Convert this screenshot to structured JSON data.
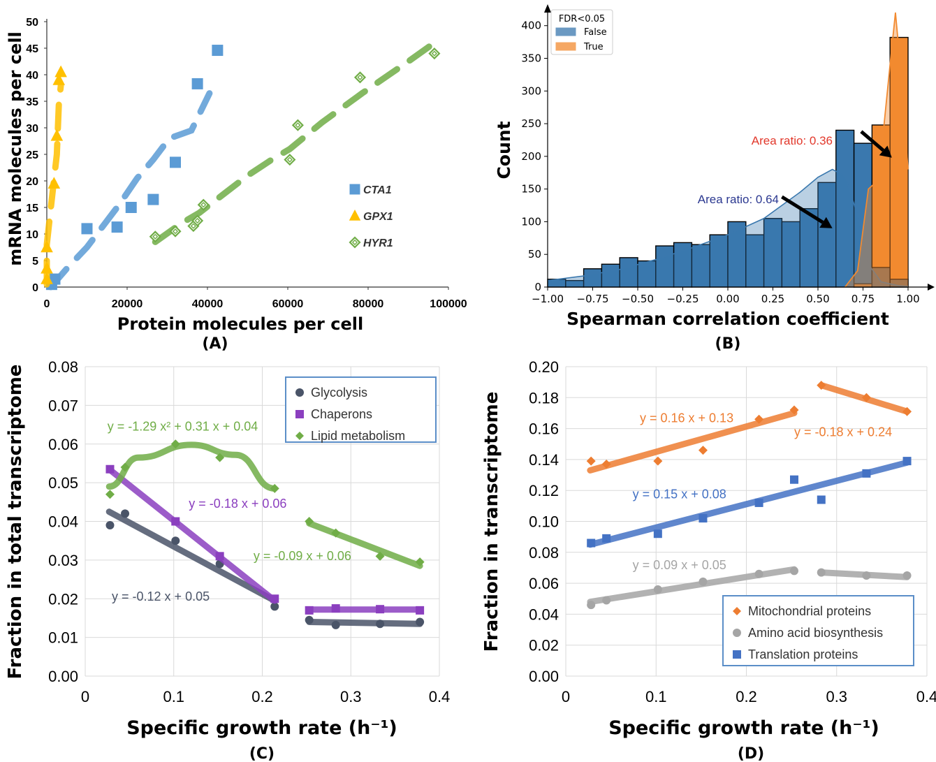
{
  "chart_data": [
    {
      "id": "A",
      "panel_label": "(A)",
      "type": "scatter",
      "xlabel": "Protein molecules per cell",
      "ylabel": "mRNA molecules per cell",
      "xlim": [
        0,
        100000
      ],
      "ylim": [
        0,
        50
      ],
      "xticks": [
        0,
        20000,
        40000,
        60000,
        80000,
        100000
      ],
      "yticks": [
        0,
        5,
        10,
        15,
        20,
        25,
        30,
        35,
        40,
        45,
        50
      ],
      "legend_position": "middle-right",
      "series": [
        {
          "name": "CTA1",
          "color": "#5b9bd5",
          "marker": "square",
          "points": [
            [
              1200,
              0.5
            ],
            [
              2000,
              1.5
            ],
            [
              10000,
              11
            ],
            [
              17500,
              11.3
            ],
            [
              21000,
              15
            ],
            [
              26500,
              16.5
            ],
            [
              32000,
              23.5
            ],
            [
              37500,
              38.3
            ],
            [
              42500,
              44.6
            ]
          ],
          "trend": [
            [
              1000,
              0
            ],
            [
              5000,
              3.5
            ],
            [
              10000,
              7.5
            ],
            [
              14500,
              12
            ],
            [
              18000,
              15.5
            ],
            [
              22500,
              20.5
            ],
            [
              26500,
              24
            ],
            [
              30500,
              28
            ],
            [
              36000,
              29.5
            ],
            [
              40500,
              36.5
            ]
          ]
        },
        {
          "name": "GPX1",
          "color": "#ffc000",
          "marker": "triangle",
          "points": [
            [
              0,
              1.5
            ],
            [
              0,
              3.5
            ],
            [
              0,
              7.5
            ],
            [
              1800,
              19.5
            ],
            [
              2500,
              28.5
            ],
            [
              3000,
              39
            ],
            [
              3500,
              40.5
            ]
          ],
          "trend": [
            [
              0,
              0.5
            ],
            [
              0,
              8
            ],
            [
              800,
              13.5
            ],
            [
              2200,
              23
            ],
            [
              2500,
              25
            ],
            [
              3000,
              34.5
            ],
            [
              3500,
              38
            ]
          ]
        },
        {
          "name": "HYR1",
          "color": "#70ad47",
          "marker": "diamond",
          "points": [
            [
              27000,
              9.5
            ],
            [
              32000,
              10.5
            ],
            [
              36500,
              11.5
            ],
            [
              37500,
              12.5
            ],
            [
              39000,
              15.5
            ],
            [
              60500,
              24
            ],
            [
              62500,
              30.5
            ],
            [
              78000,
              39.5
            ],
            [
              96500,
              44
            ]
          ],
          "trend": [
            [
              27000,
              8.5
            ],
            [
              33500,
              12
            ],
            [
              38000,
              14
            ],
            [
              44000,
              17.5
            ],
            [
              50000,
              21
            ],
            [
              56000,
              24
            ],
            [
              60500,
              26
            ],
            [
              68500,
              31
            ],
            [
              78500,
              36.5
            ],
            [
              90000,
              42.5
            ],
            [
              96500,
              46
            ]
          ]
        }
      ]
    },
    {
      "id": "B",
      "panel_label": "(B)",
      "type": "histogram",
      "xlabel": "Spearman correlation coefficient",
      "ylabel": "Count",
      "xlim": [
        -1.0,
        1.0
      ],
      "ylim": [
        0,
        420
      ],
      "xticks": [
        -1.0,
        -0.75,
        -0.5,
        -0.25,
        0.0,
        0.25,
        0.5,
        0.75,
        1.0
      ],
      "xtick_labels": [
        "−1.00",
        "−0.75",
        "−0.50",
        "−0.25",
        "0.00",
        "0.25",
        "0.50",
        "0.75",
        "1.00"
      ],
      "yticks": [
        0,
        50,
        100,
        150,
        200,
        250,
        300,
        350,
        400
      ],
      "legend_title": "FDR<0.05",
      "legend_position": "top-left",
      "bin_edges": [
        -1.0,
        -0.9,
        -0.8,
        -0.7,
        -0.6,
        -0.5,
        -0.4,
        -0.3,
        -0.2,
        -0.1,
        0.0,
        0.1,
        0.2,
        0.3,
        0.4,
        0.5,
        0.6,
        0.7,
        0.8,
        0.9,
        1.0
      ],
      "series": [
        {
          "name": "False",
          "color": "#3a78ae",
          "counts": [
            12,
            10,
            28,
            35,
            45,
            40,
            63,
            68,
            65,
            80,
            100,
            80,
            105,
            100,
            120,
            160,
            240,
            220,
            30,
            12
          ]
        },
        {
          "name": "True",
          "color": "#f28a30",
          "counts": [
            0,
            0,
            0,
            0,
            0,
            0,
            0,
            0,
            0,
            0,
            0,
            0,
            0,
            0,
            0,
            0,
            0,
            5,
            248,
            382
          ]
        }
      ],
      "kde_false": [
        [
          -1.0,
          10
        ],
        [
          -0.8,
          17
        ],
        [
          -0.6,
          27
        ],
        [
          -0.4,
          42
        ],
        [
          -0.2,
          60
        ],
        [
          0.0,
          80
        ],
        [
          0.2,
          105
        ],
        [
          0.4,
          145
        ],
        [
          0.5,
          168
        ],
        [
          0.58,
          180
        ],
        [
          0.65,
          170
        ],
        [
          0.72,
          110
        ],
        [
          0.78,
          35
        ],
        [
          0.85,
          8
        ],
        [
          0.95,
          2
        ],
        [
          1.0,
          1
        ]
      ],
      "kde_true": [
        [
          0.65,
          0
        ],
        [
          0.72,
          25
        ],
        [
          0.78,
          150
        ],
        [
          0.82,
          160
        ],
        [
          0.86,
          230
        ],
        [
          0.9,
          340
        ],
        [
          0.93,
          420
        ],
        [
          0.96,
          330
        ],
        [
          0.98,
          250
        ],
        [
          1.0,
          180
        ]
      ],
      "annotations": [
        {
          "text": "Area ratio: 0.36",
          "color": "#e2382b",
          "from": [
            0.74,
            238
          ],
          "to": [
            0.91,
            198
          ]
        },
        {
          "text": "Area ratio: 0.64",
          "color": "#2b3890",
          "from": [
            0.3,
            138
          ],
          "to": [
            0.58,
            90
          ]
        }
      ]
    },
    {
      "id": "C",
      "panel_label": "(C)",
      "type": "scatter",
      "xlabel": "Specific growth rate (h⁻¹)",
      "ylabel": "Fraction in total transcriptome",
      "xlim": [
        0,
        0.4
      ],
      "ylim": [
        0,
        0.08
      ],
      "xticks": [
        0,
        0.1,
        0.2,
        0.3,
        0.4
      ],
      "xtick_labels": [
        "0",
        "0.1",
        "0.2",
        "0.3",
        "0.4"
      ],
      "yticks": [
        0,
        0.01,
        0.02,
        0.03,
        0.04,
        0.05,
        0.06,
        0.07,
        0.08
      ],
      "ytick_labels": [
        "0.00",
        "0.01",
        "0.02",
        "0.03",
        "0.04",
        "0.05",
        "0.06",
        "0.07",
        "0.08"
      ],
      "grid": true,
      "legend_position": "top-right",
      "series": [
        {
          "name": "Glycolysis",
          "color": "#4a5468",
          "marker": "circle",
          "points": [
            [
              0.028,
              0.039
            ],
            [
              0.045,
              0.042
            ],
            [
              0.102,
              0.035
            ],
            [
              0.152,
              0.029
            ],
            [
              0.214,
              0.018
            ],
            [
              0.253,
              0.0145
            ],
            [
              0.283,
              0.0132
            ],
            [
              0.333,
              0.0135
            ],
            [
              0.378,
              0.014
            ]
          ],
          "fits": [
            [
              [
                0.027,
                0.0425
              ],
              [
                0.214,
                0.0195
              ]
            ],
            [
              [
                0.253,
                0.014
              ],
              [
                0.378,
                0.0135
              ]
            ]
          ]
        },
        {
          "name": "Chaperons",
          "color": "#8b3fbf",
          "marker": "square",
          "points": [
            [
              0.028,
              0.0535
            ],
            [
              0.102,
              0.04
            ],
            [
              0.152,
              0.031
            ],
            [
              0.214,
              0.02
            ],
            [
              0.253,
              0.017
            ],
            [
              0.283,
              0.0175
            ],
            [
              0.333,
              0.0173
            ],
            [
              0.378,
              0.017
            ]
          ],
          "fits": [
            [
              [
                0.027,
                0.0535
              ],
              [
                0.214,
                0.0195
              ]
            ],
            [
              [
                0.253,
                0.0172
              ],
              [
                0.378,
                0.0172
              ]
            ]
          ]
        },
        {
          "name": "Lipid metabolism",
          "color": "#70ad47",
          "marker": "diamond",
          "points": [
            [
              0.028,
              0.047
            ],
            [
              0.045,
              0.054
            ],
            [
              0.102,
              0.06
            ],
            [
              0.152,
              0.0565
            ],
            [
              0.214,
              0.0485
            ],
            [
              0.253,
              0.04
            ],
            [
              0.283,
              0.037
            ],
            [
              0.333,
              0.031
            ],
            [
              0.378,
              0.0295
            ]
          ],
          "fits": [
            [
              [
                0.027,
                0.049
              ],
              [
                0.06,
                0.0565
              ],
              [
                0.12,
                0.0598
              ],
              [
                0.17,
                0.0572
              ],
              [
                0.214,
                0.0485
              ]
            ],
            [
              [
                0.253,
                0.0395
              ],
              [
                0.378,
                0.0285
              ]
            ]
          ]
        }
      ],
      "equations": [
        {
          "text": "y = -1.29 x² + 0.31 x + 0.04",
          "color": "#70ad47",
          "at": [
            0.025,
            0.0635
          ]
        },
        {
          "text": "y = -0.18 x + 0.06",
          "color": "#8b3fbf",
          "at": [
            0.117,
            0.0435
          ]
        },
        {
          "text": "y = -0.09 x + 0.06",
          "color": "#70ad47",
          "at": [
            0.19,
            0.03
          ]
        },
        {
          "text": "y = -0.12 x + 0.05",
          "color": "#4a5468",
          "at": [
            0.03,
            0.0195
          ]
        }
      ]
    },
    {
      "id": "D",
      "panel_label": "(D)",
      "type": "scatter",
      "xlabel": "Specific growth rate (h⁻¹)",
      "ylabel": "Fraction in transcriptome",
      "xlim": [
        0,
        0.4
      ],
      "ylim": [
        0,
        0.2
      ],
      "xticks": [
        0,
        0.1,
        0.2,
        0.3,
        0.4
      ],
      "xtick_labels": [
        "0",
        "0.1",
        "0.2",
        "0.3",
        "0.4"
      ],
      "yticks": [
        0,
        0.02,
        0.04,
        0.06,
        0.08,
        0.1,
        0.12,
        0.14,
        0.16,
        0.18,
        0.2
      ],
      "ytick_labels": [
        "0.00",
        "0.02",
        "0.04",
        "0.06",
        "0.08",
        "0.10",
        "0.12",
        "0.14",
        "0.16",
        "0.18",
        "0.20"
      ],
      "grid": true,
      "legend_position": "bottom-right",
      "series": [
        {
          "name": "Mitochondrial proteins",
          "color": "#ed7d31",
          "marker": "diamond",
          "points": [
            [
              0.028,
              0.139
            ],
            [
              0.045,
              0.137
            ],
            [
              0.102,
              0.139
            ],
            [
              0.152,
              0.146
            ],
            [
              0.214,
              0.166
            ],
            [
              0.253,
              0.172
            ],
            [
              0.283,
              0.188
            ],
            [
              0.333,
              0.18
            ],
            [
              0.378,
              0.171
            ]
          ],
          "fits": [
            [
              [
                0.027,
                0.133
              ],
              [
                0.253,
                0.17
              ]
            ],
            [
              [
                0.283,
                0.188
              ],
              [
                0.378,
                0.171
              ]
            ]
          ]
        },
        {
          "name": "Amino acid biosynthesis",
          "color": "#a5a5a5",
          "marker": "circle",
          "points": [
            [
              0.028,
              0.046
            ],
            [
              0.045,
              0.049
            ],
            [
              0.102,
              0.056
            ],
            [
              0.152,
              0.061
            ],
            [
              0.214,
              0.066
            ],
            [
              0.253,
              0.068
            ],
            [
              0.283,
              0.067
            ],
            [
              0.333,
              0.065
            ],
            [
              0.378,
              0.065
            ]
          ],
          "fits": [
            [
              [
                0.027,
                0.048
              ],
              [
                0.253,
                0.069
              ]
            ],
            [
              [
                0.283,
                0.067
              ],
              [
                0.378,
                0.064
              ]
            ]
          ]
        },
        {
          "name": "Translation proteins",
          "color": "#4472c4",
          "marker": "square",
          "points": [
            [
              0.028,
              0.086
            ],
            [
              0.045,
              0.089
            ],
            [
              0.102,
              0.092
            ],
            [
              0.152,
              0.102
            ],
            [
              0.214,
              0.112
            ],
            [
              0.253,
              0.127
            ],
            [
              0.283,
              0.114
            ],
            [
              0.333,
              0.131
            ],
            [
              0.378,
              0.139
            ]
          ],
          "fits": [
            [
              [
                0.027,
                0.085
              ],
              [
                0.378,
                0.138
              ]
            ]
          ]
        }
      ],
      "equations": [
        {
          "text": "y = 0.16 x + 0.13",
          "color": "#ed7d31",
          "at": [
            0.082,
            0.164
          ]
        },
        {
          "text": "y = -0.18 x + 0.24",
          "color": "#ed7d31",
          "at": [
            0.253,
            0.155
          ]
        },
        {
          "text": "y = 0.15 x + 0.08",
          "color": "#4472c4",
          "at": [
            0.074,
            0.115
          ]
        },
        {
          "text": "y = 0.09 x + 0.05",
          "color": "#a5a5a5",
          "at": [
            0.074,
            0.069
          ]
        }
      ]
    }
  ]
}
